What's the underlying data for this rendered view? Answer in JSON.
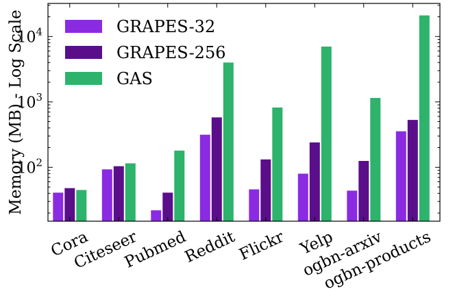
{
  "chart_data": {
    "type": "bar",
    "title": "",
    "xlabel": "",
    "ylabel": "Memory (MB) - Log Scale",
    "yscale": "log",
    "ylim": [
      15,
      32000
    ],
    "yticks": [
      {
        "value": 100,
        "base": "10",
        "exp": "2"
      },
      {
        "value": 1000,
        "base": "10",
        "exp": "3"
      },
      {
        "value": 10000,
        "base": "10",
        "exp": "4"
      }
    ],
    "categories": [
      "Cora",
      "Citeseer",
      "Pubmed",
      "Reddit",
      "Flickr",
      "Yelp",
      "ogbn-arxiv",
      "ogbn-products"
    ],
    "series": [
      {
        "name": "GRAPES-32",
        "color": "#8a2be2",
        "values": [
          41,
          93,
          22,
          315,
          46,
          80,
          44,
          355
        ]
      },
      {
        "name": "GRAPES-256",
        "color": "#5a0e8a",
        "values": [
          48,
          104,
          41,
          580,
          132,
          240,
          125,
          530
        ]
      },
      {
        "name": "GAS",
        "color": "#2db36b",
        "values": [
          45,
          115,
          180,
          4000,
          820,
          7000,
          1150,
          21000
        ]
      }
    ],
    "legend_position": "top-left",
    "grid": false
  }
}
